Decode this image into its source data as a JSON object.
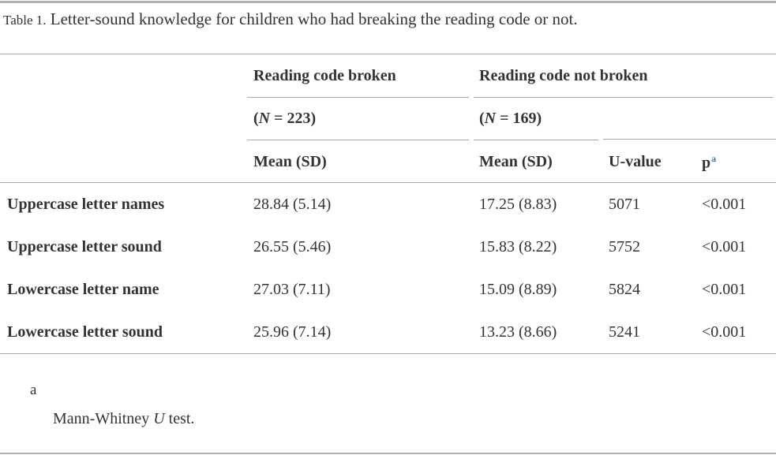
{
  "caption": {
    "label": "Table 1.",
    "text": "Letter-sound knowledge for children who had breaking the reading code or not."
  },
  "header": {
    "group1": "Reading code broken",
    "group1_n_prefix": "(",
    "group1_n_var": "N",
    "group1_n_rest": " = 223)",
    "group2": "Reading code not broken",
    "group2_n_prefix": "(",
    "group2_n_var": "N",
    "group2_n_rest": " = 169)",
    "col_mean1": "Mean (SD)",
    "col_mean2": "Mean (SD)",
    "col_u": "U-value",
    "col_p": "p",
    "col_p_note": "a"
  },
  "rows": [
    {
      "label": "Uppercase letter names",
      "mean1": "28.84 (5.14)",
      "mean2": "17.25 (8.83)",
      "u": "5071",
      "p": "<0.001"
    },
    {
      "label": "Uppercase letter sound",
      "mean1": "26.55 (5.46)",
      "mean2": "15.83 (8.22)",
      "u": "5752",
      "p": "<0.001"
    },
    {
      "label": "Lowercase letter name",
      "mean1": "27.03 (7.11)",
      "mean2": "15.09 (8.89)",
      "u": "5824",
      "p": "<0.001"
    },
    {
      "label": "Lowercase letter sound",
      "mean1": "25.96 (7.14)",
      "mean2": "13.23 (8.66)",
      "u": "5241",
      "p": "<0.001"
    }
  ],
  "footnote": {
    "marker": "a",
    "text_before": "Mann-Whitney ",
    "text_var": "U",
    "text_after": " test."
  }
}
